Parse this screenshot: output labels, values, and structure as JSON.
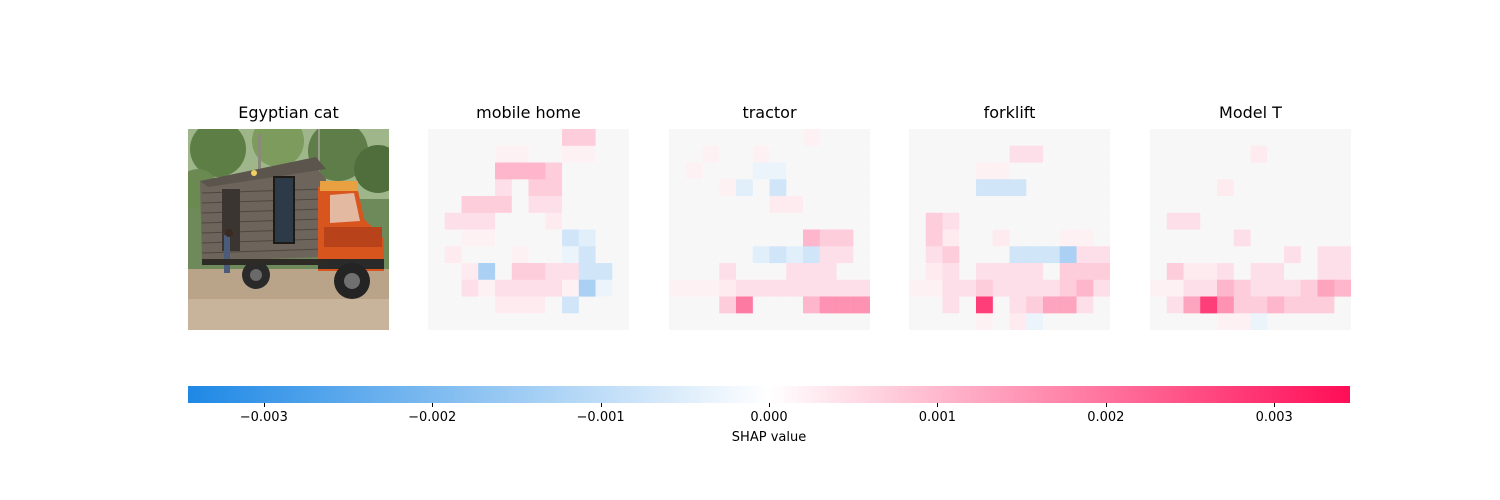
{
  "chart_data": {
    "type": "heatmap",
    "panels": [
      {
        "label": "Egyptian cat",
        "kind": "original-image"
      },
      {
        "label": "mobile home",
        "kind": "shap-overlay"
      },
      {
        "label": "tractor",
        "kind": "shap-overlay"
      },
      {
        "label": "forklift",
        "kind": "shap-overlay"
      },
      {
        "label": "Model T",
        "kind": "shap-overlay"
      }
    ],
    "colorbar": {
      "label": "SHAP value",
      "range": [
        -0.00345,
        0.00345
      ],
      "ticks": [
        -0.003,
        -0.002,
        -0.001,
        0.0,
        0.001,
        0.002,
        0.003
      ],
      "tick_labels": [
        "−0.003",
        "−0.002",
        "−0.001",
        "0.000",
        "0.001",
        "0.002",
        "0.003"
      ],
      "color_negative": "#1e88e5",
      "color_zero": "#ffffff",
      "color_positive": "#ff0d57"
    },
    "grid": 12,
    "shap_values": [
      [
        [
          0,
          0,
          0,
          0,
          0,
          0,
          0,
          0,
          0.0008,
          0.0008,
          0,
          0
        ],
        [
          0,
          0,
          0,
          0,
          0.0002,
          0.0002,
          0,
          0,
          0.0002,
          0.0002,
          0,
          0
        ],
        [
          0,
          0,
          0,
          0,
          0.0012,
          0.0012,
          0.0012,
          0.0008,
          0,
          0,
          0,
          0
        ],
        [
          0,
          0,
          0,
          0,
          0.0005,
          0,
          0.0008,
          0.0008,
          0,
          0,
          0,
          0
        ],
        [
          0,
          0,
          0.0008,
          0.0008,
          0.0008,
          0,
          0.0005,
          0.0005,
          0,
          0,
          0,
          0
        ],
        [
          0,
          0.0005,
          0.0005,
          0.0005,
          0,
          0,
          0,
          0.0003,
          0,
          0,
          0,
          0
        ],
        [
          0,
          0,
          0.0002,
          0.0002,
          0,
          0,
          0,
          0,
          -0.0008,
          -0.0005,
          0,
          0
        ],
        [
          0,
          0.0003,
          0,
          0,
          0,
          0.0002,
          0,
          0,
          -0.0003,
          -0.0008,
          0,
          0
        ],
        [
          0,
          0,
          0.0003,
          -0.0015,
          0,
          0.0008,
          0.0008,
          0.0005,
          0.0005,
          -0.0008,
          -0.0008,
          0
        ],
        [
          0,
          0,
          0.0005,
          0.0002,
          0.0005,
          0.0005,
          0.0005,
          0.0005,
          0.0002,
          -0.0015,
          -0.0003,
          0
        ],
        [
          0,
          0,
          0,
          0,
          0.0003,
          0.0003,
          0.0003,
          0,
          -0.0008,
          0,
          0,
          0
        ],
        [
          0,
          0,
          0,
          0,
          0,
          0,
          0,
          0,
          0,
          0,
          0,
          0
        ]
      ],
      [
        [
          0,
          0,
          0,
          0,
          0,
          0,
          0,
          0,
          0.0002,
          0,
          0,
          0
        ],
        [
          0,
          0,
          0.0002,
          0,
          0,
          0.0002,
          0,
          0,
          0,
          0,
          0,
          0
        ],
        [
          0,
          0.0002,
          0,
          0,
          0,
          -0.0003,
          -0.0003,
          0,
          0,
          0,
          0,
          0
        ],
        [
          0,
          0,
          0,
          0.0002,
          -0.0005,
          0,
          -0.0008,
          0,
          0,
          0,
          0,
          0
        ],
        [
          0,
          0,
          0,
          0,
          0,
          0,
          0.0003,
          0.0003,
          0,
          0,
          0,
          0
        ],
        [
          0,
          0,
          0,
          0,
          0,
          0,
          0,
          0,
          0,
          0,
          0,
          0
        ],
        [
          0,
          0,
          0,
          0,
          0,
          0,
          0,
          0,
          0.0012,
          0.0008,
          0.0008,
          0
        ],
        [
          0,
          0,
          0,
          0,
          0,
          -0.0005,
          -0.0008,
          -0.0005,
          -0.0008,
          0.0005,
          0.0005,
          0
        ],
        [
          0,
          0,
          0,
          0.0005,
          0,
          0,
          0,
          0.0005,
          0.0005,
          0.0005,
          0,
          0
        ],
        [
          0.0002,
          0.0002,
          0.0002,
          0.0003,
          0.0005,
          0.0005,
          0.0005,
          0.0005,
          0.0005,
          0.0005,
          0.0005,
          0.0005
        ],
        [
          0,
          0,
          0,
          0.0008,
          0.0022,
          0,
          0,
          0,
          0.0012,
          0.0018,
          0.0018,
          0.0018
        ],
        [
          0,
          0,
          0,
          0,
          0,
          0,
          0,
          0,
          0,
          0,
          0,
          0
        ]
      ],
      [
        [
          0,
          0,
          0,
          0,
          0,
          0,
          0,
          0,
          0,
          0,
          0,
          0
        ],
        [
          0,
          0,
          0,
          0,
          0,
          0,
          0.0005,
          0.0005,
          0,
          0,
          0,
          0
        ],
        [
          0,
          0,
          0,
          0,
          0.0002,
          0.0002,
          0,
          0,
          0,
          0,
          0,
          0
        ],
        [
          0,
          0,
          0,
          0,
          -0.0008,
          -0.0008,
          -0.0008,
          0,
          0,
          0,
          0,
          0
        ],
        [
          0,
          0,
          0,
          0,
          0,
          0,
          0,
          0,
          0,
          0,
          0,
          0
        ],
        [
          0,
          0.0008,
          0.0005,
          0,
          0,
          0,
          0,
          0,
          0,
          0,
          0,
          0
        ],
        [
          0,
          0.0008,
          0.0003,
          0,
          0,
          0.0003,
          0,
          0,
          0,
          0.0002,
          0.0002,
          0
        ],
        [
          0,
          0.0005,
          0.0008,
          0,
          0,
          0,
          -0.0008,
          -0.0008,
          -0.0008,
          -0.0015,
          0.0005,
          0.0005
        ],
        [
          0,
          0.0003,
          0.0005,
          0,
          0.0005,
          0.0005,
          0.0005,
          0.0005,
          0,
          0.0008,
          0.0008,
          0.0008
        ],
        [
          0.0002,
          0.0002,
          0.0005,
          0.0005,
          0.0008,
          0.0005,
          0.0005,
          0.0005,
          0.0005,
          0.0008,
          0.0012,
          0.0005
        ],
        [
          0,
          0,
          0.0005,
          0,
          0.0032,
          0,
          0.0005,
          0.0008,
          0.0015,
          0.0015,
          0.0005,
          0
        ],
        [
          0,
          0,
          0,
          0,
          0.0002,
          0,
          0.0003,
          -0.0003,
          0,
          0,
          0,
          0
        ]
      ],
      [
        [
          0,
          0,
          0,
          0,
          0,
          0,
          0,
          0,
          0,
          0,
          0,
          0
        ],
        [
          0,
          0,
          0,
          0,
          0,
          0,
          0.0003,
          0,
          0,
          0,
          0,
          0
        ],
        [
          0,
          0,
          0,
          0,
          0,
          0,
          0,
          0,
          0,
          0,
          0,
          0
        ],
        [
          0,
          0,
          0,
          0,
          0.0003,
          0,
          0,
          0,
          0,
          0,
          0,
          0
        ],
        [
          0,
          0,
          0,
          0,
          0,
          0,
          0,
          0,
          0,
          0,
          0,
          0
        ],
        [
          0,
          0.0005,
          0.0005,
          0,
          0,
          0,
          0,
          0,
          0,
          0,
          0,
          0
        ],
        [
          0,
          0,
          0,
          0,
          0,
          0.0005,
          0,
          0,
          0,
          0,
          0,
          0
        ],
        [
          0,
          0,
          0,
          0,
          0,
          0,
          0,
          0,
          0.0005,
          0,
          0.0005,
          0.0005
        ],
        [
          0,
          0.0008,
          0.0003,
          0.0003,
          0.0005,
          0,
          0.0005,
          0.0005,
          0,
          0,
          0.0005,
          0.0005
        ],
        [
          0.0002,
          0.0002,
          0.0005,
          0.0005,
          0.0012,
          0.0008,
          0.0005,
          0.0005,
          0.0005,
          0.0008,
          0.0015,
          0.0012
        ],
        [
          0,
          0.0005,
          0.0015,
          0.0032,
          0.0018,
          0.0008,
          0.0008,
          0.0012,
          0.0008,
          0.0008,
          0.0008,
          0
        ],
        [
          0,
          0,
          0,
          0,
          0.0002,
          0.0002,
          -0.0003,
          0,
          0,
          0,
          0,
          0
        ]
      ]
    ]
  }
}
